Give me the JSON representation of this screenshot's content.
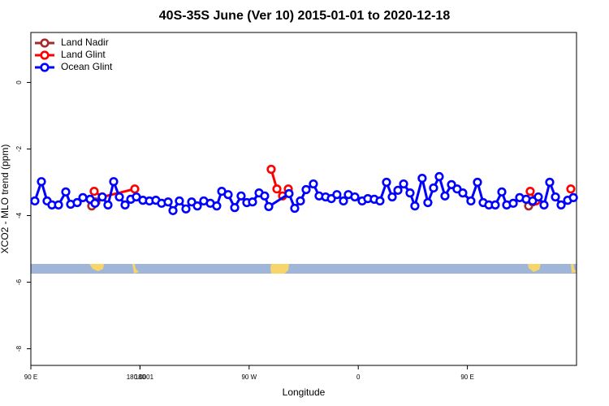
{
  "chart_data": {
    "type": "line",
    "title": "40S-35S June (Ver 10)   2015-01-01 to 2020-12-18",
    "x_label": "Longitude",
    "y_label": "XCO2 - MLO trend (ppm)",
    "xlim": [
      90,
      540
    ],
    "xticks": [
      {
        "value": 90,
        "label": "90 E"
      },
      180,
      {
        "value": 270,
        "label": "90 W"
      },
      {
        "value": 360,
        "label": "0"
      },
      {
        "value": 450,
        "label": "90 E"
      },
      180.0001
    ],
    "ylim": [
      -8.5,
      1.5
    ],
    "yticks": [
      0,
      -2,
      -4,
      -6,
      -8
    ],
    "legend_position": "top-left",
    "series": [
      {
        "name": "Land Nadir",
        "color": "#a52a2a",
        "x": [
          140.2,
          143.6,
          null,
          500.5,
          503.8
        ],
        "values": [
          -3.71,
          -3.59,
          null,
          -3.71,
          -3.59
        ]
      },
      {
        "name": "Land Glint",
        "color": "#ff0000",
        "x": [
          142.2,
          148.9,
          175.7,
          null,
          288.2,
          292.9,
          297.6,
          302.3,
          null,
          501.8,
          506.5,
          null,
          535.3
        ],
        "values": [
          -3.27,
          -3.44,
          -3.2,
          null,
          -2.61,
          -3.2,
          -3.41,
          -3.2,
          null,
          -3.27,
          -3.56,
          null,
          -3.2
        ]
      },
      {
        "name": "Ocean Glint",
        "color": "#0000ff",
        "x": [
          93.3,
          98.7,
          103.4,
          107.4,
          112.8,
          118.8,
          122.8,
          128.2,
          132.9,
          138.9,
          142.9,
          148.9,
          153.6,
          158.3,
          163.0,
          167.7,
          172.4,
          177.0,
          182.4,
          187.8,
          193.1,
          197.8,
          203.2,
          207.2,
          212.5,
          217.9,
          222.6,
          227.3,
          232.6,
          238.0,
          243.3,
          247.4,
          252.7,
          258.1,
          263.4,
          268.1,
          272.8,
          278.2,
          282.8,
          286.2,
          302.9,
          307.6,
          312.3,
          317.0,
          323.0,
          327.7,
          333.1,
          337.8,
          342.4,
          347.8,
          351.8,
          357.2,
          363.2,
          367.9,
          373.2,
          377.9,
          383.3,
          388.0,
          392.7,
          397.4,
          402.7,
          406.7,
          412.7,
          417.4,
          422.1,
          426.8,
          431.5,
          436.9,
          441.5,
          446.2,
          452.9,
          458.3,
          463.0,
          467.7,
          473.0,
          478.4,
          482.4,
          487.8,
          493.1,
          498.5,
          503.8,
          508.5,
          513.2,
          517.9,
          522.6,
          527.3,
          532.7,
          537.4
        ],
        "values": [
          -3.56,
          -2.98,
          -3.56,
          -3.68,
          -3.68,
          -3.29,
          -3.66,
          -3.61,
          -3.46,
          -3.51,
          -3.63,
          -3.44,
          -3.68,
          -2.98,
          -3.44,
          -3.68,
          -3.51,
          -3.44,
          -3.54,
          -3.56,
          -3.54,
          -3.63,
          -3.59,
          -3.85,
          -3.56,
          -3.8,
          -3.59,
          -3.71,
          -3.56,
          -3.63,
          -3.71,
          -3.27,
          -3.37,
          -3.76,
          -3.41,
          -3.61,
          -3.59,
          -3.32,
          -3.41,
          -3.73,
          -3.34,
          -3.78,
          -3.56,
          -3.22,
          -3.05,
          -3.41,
          -3.44,
          -3.49,
          -3.37,
          -3.56,
          -3.37,
          -3.44,
          -3.56,
          -3.49,
          -3.51,
          -3.56,
          -3.0,
          -3.44,
          -3.24,
          -3.05,
          -3.32,
          -3.71,
          -2.88,
          -3.61,
          -3.17,
          -2.83,
          -3.41,
          -3.07,
          -3.2,
          -3.32,
          -3.56,
          -3.0,
          -3.61,
          -3.68,
          -3.68,
          -3.29,
          -3.68,
          -3.63,
          -3.46,
          -3.51,
          -3.56,
          -3.44,
          -3.68,
          -3.0,
          -3.44,
          -3.68,
          -3.54,
          -3.46
        ]
      }
    ]
  }
}
